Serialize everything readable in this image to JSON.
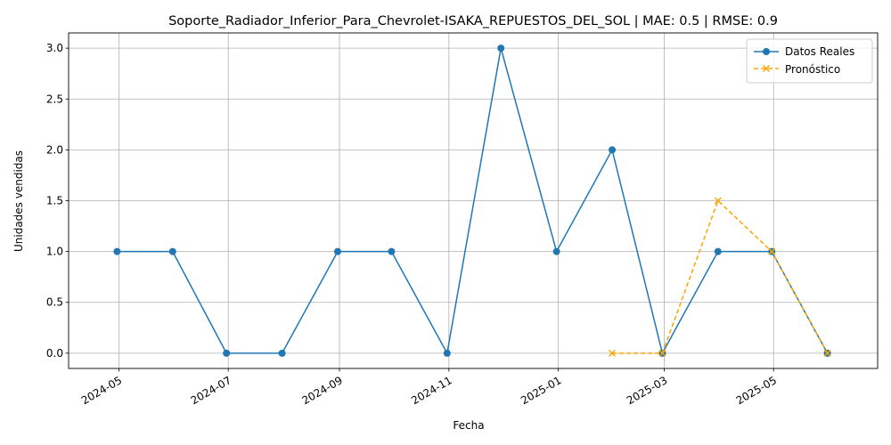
{
  "chart_data": {
    "type": "line",
    "title": "Soporte_Radiador_Inferior_Para_Chevrolet-ISAKA_REPUESTOS_DEL_SOL | MAE: 0.5 | RMSE: 0.9",
    "xlabel": "Fecha",
    "ylabel": "Unidades vendidas",
    "x_ticks": [
      "2024-05",
      "2024-07",
      "2024-09",
      "2024-11",
      "2025-01",
      "2025-03",
      "2025-05"
    ],
    "y_ticks": [
      "0.0",
      "0.5",
      "1.0",
      "1.5",
      "2.0",
      "2.5",
      "3.0"
    ],
    "ylim": [
      -0.15,
      3.15
    ],
    "xlim": [
      "2024-04-03",
      "2025-06-28"
    ],
    "grid": true,
    "legend_position": "top-right",
    "series": [
      {
        "name": "Datos Reales",
        "color": "#1f77b4",
        "marker": "circle",
        "line_style": "solid",
        "x": [
          "2024-04-30",
          "2024-05-31",
          "2024-06-30",
          "2024-07-31",
          "2024-08-31",
          "2024-09-30",
          "2024-10-31",
          "2024-11-30",
          "2024-12-31",
          "2025-01-31",
          "2025-02-28",
          "2025-03-31",
          "2025-04-30",
          "2025-05-31"
        ],
        "y": [
          1,
          1,
          0,
          0,
          1,
          1,
          0,
          3,
          1,
          2,
          0,
          1,
          1,
          0
        ]
      },
      {
        "name": "Pronóstico",
        "color": "#ffa500",
        "marker": "x",
        "line_style": "dashed",
        "x": [
          "2025-01-31",
          "2025-02-28",
          "2025-03-31",
          "2025-04-30",
          "2025-05-31"
        ],
        "y": [
          0,
          0,
          1.5,
          1,
          0
        ]
      }
    ]
  }
}
